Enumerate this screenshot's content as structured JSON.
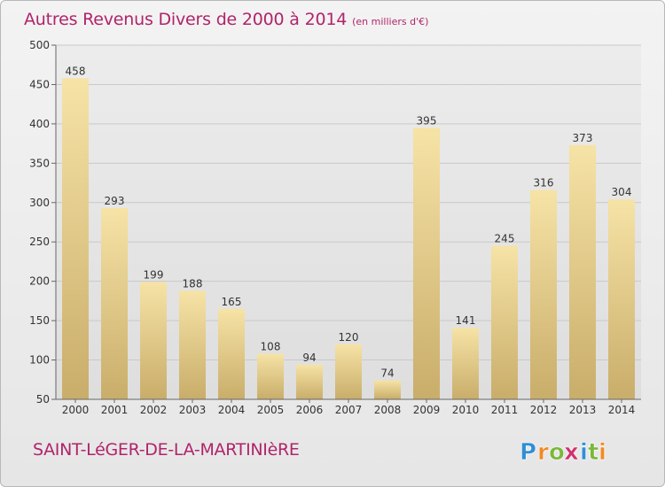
{
  "chart_data": {
    "type": "bar",
    "title": "Autres Revenus Divers de 2000 à 2014",
    "subtitle": "(en milliers d'€)",
    "xlabel": "",
    "ylabel": "",
    "categories": [
      "2000",
      "2001",
      "2002",
      "2003",
      "2004",
      "2005",
      "2006",
      "2007",
      "2008",
      "2009",
      "2010",
      "2011",
      "2012",
      "2013",
      "2014"
    ],
    "values": [
      458,
      293,
      199,
      188,
      165,
      108,
      94,
      120,
      74,
      395,
      141,
      245,
      316,
      373,
      304
    ],
    "ylim": [
      50,
      500
    ],
    "yticks": [
      50,
      100,
      150,
      200,
      250,
      300,
      350,
      400,
      450,
      500
    ],
    "grid": true,
    "bar_color": "#e6cc84"
  },
  "footer": {
    "commune": "SAINT-LéGER-DE-LA-MARTINIèRE"
  },
  "logo": {
    "letters": [
      "P",
      "r",
      "o",
      "x",
      "i",
      "t",
      "i"
    ],
    "colors": [
      "#2f8fd5",
      "#f08a24",
      "#7ab83a",
      "#d0306e",
      "#2f8fd5",
      "#7ab83a",
      "#f08a24"
    ]
  }
}
